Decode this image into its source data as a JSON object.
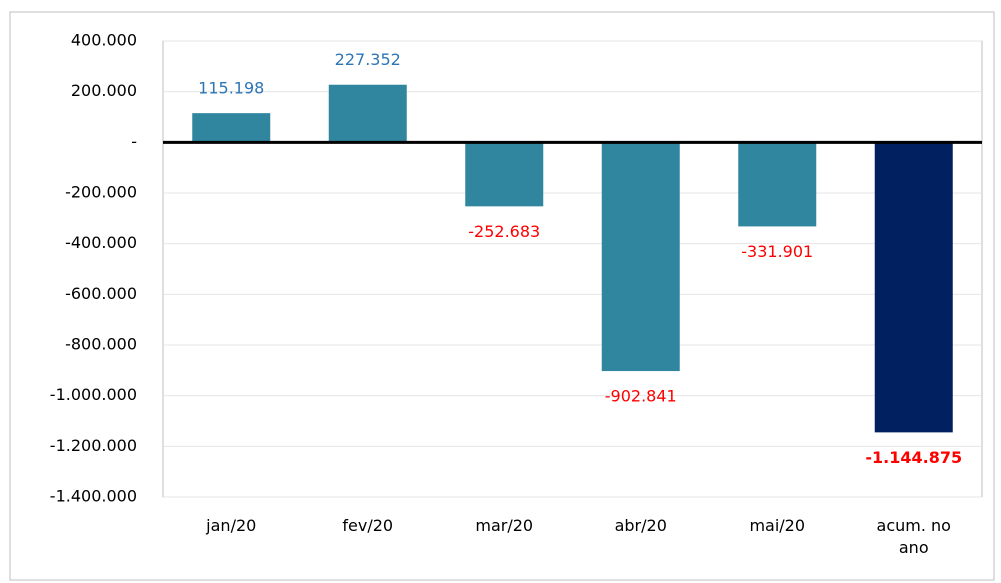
{
  "chart_data": {
    "type": "bar",
    "categories": [
      "jan/20",
      "fev/20",
      "mar/20",
      "abr/20",
      "mai/20",
      "acum. no ano"
    ],
    "values": [
      115198,
      227352,
      -252683,
      -902841,
      -331901,
      -1144875
    ],
    "value_labels": [
      "115.198",
      "227.352",
      "-252.683",
      "-902.841",
      "-331.901",
      "-1.144.875"
    ],
    "colors": [
      "#31869f",
      "#31869f",
      "#31869f",
      "#31869f",
      "#31869f",
      "#002060"
    ],
    "ylim": [
      -1400000,
      400000
    ],
    "yticks": [
      {
        "value": 400000,
        "label": "400.000"
      },
      {
        "value": 200000,
        "label": "200.000"
      },
      {
        "value": 0,
        "label": "-"
      },
      {
        "value": -200000,
        "label": "-200.000"
      },
      {
        "value": -400000,
        "label": "-400.000"
      },
      {
        "value": -600000,
        "label": "-600.000"
      },
      {
        "value": -800000,
        "label": "-800.000"
      },
      {
        "value": -1000000,
        "label": "-1.000.000"
      },
      {
        "value": -1200000,
        "label": "-1.200.000"
      },
      {
        "value": -1400000,
        "label": "-1.400.000"
      }
    ],
    "grid": true
  }
}
